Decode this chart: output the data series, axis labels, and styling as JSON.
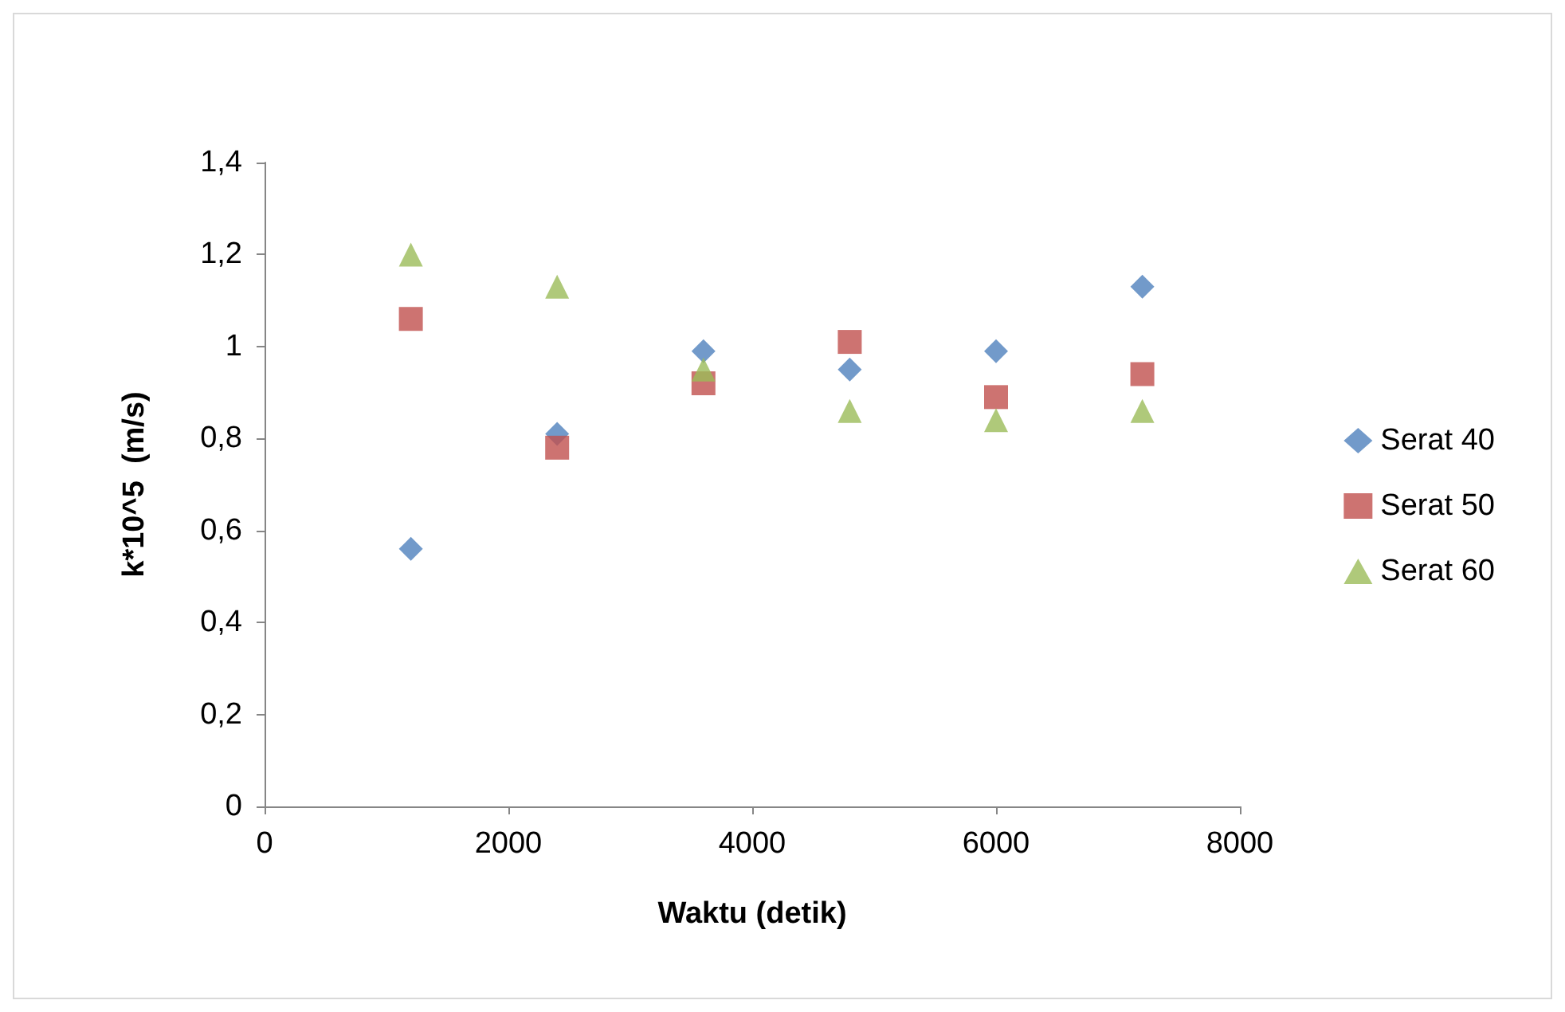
{
  "chart_data": {
    "type": "scatter",
    "xlabel": "Waktu (detik)",
    "ylabel": "k*10^5  (m/s)",
    "x": [
      1200,
      2400,
      3600,
      4800,
      6000,
      7200
    ],
    "series": [
      {
        "name": "Serat 40",
        "color": "#4f81bd",
        "marker": "diamond",
        "values": [
          0.56,
          0.81,
          0.99,
          0.95,
          0.99,
          1.13
        ]
      },
      {
        "name": "Serat 50",
        "color": "#c0504d",
        "marker": "square",
        "values": [
          1.06,
          0.78,
          0.92,
          1.01,
          0.89,
          0.94
        ]
      },
      {
        "name": "Serat 60",
        "color": "#9bbb59",
        "marker": "triangle",
        "values": [
          1.2,
          1.13,
          0.95,
          0.86,
          0.84,
          0.86
        ]
      }
    ],
    "xlim": [
      0,
      8000
    ],
    "xticks": [
      0,
      2000,
      4000,
      6000,
      8000
    ],
    "ylim": [
      0,
      1.4
    ],
    "yticks": [
      0,
      {
        "value": 0.2,
        "label": "0,2"
      },
      {
        "value": 0.4,
        "label": "0,4"
      },
      {
        "value": 0.6,
        "label": "0,6"
      },
      {
        "value": 0.8,
        "label": "0,8"
      },
      1,
      {
        "value": 1.2,
        "label": "1,2"
      },
      {
        "value": 1.4,
        "label": "1,4"
      }
    ],
    "grid": false,
    "legend": "right"
  }
}
